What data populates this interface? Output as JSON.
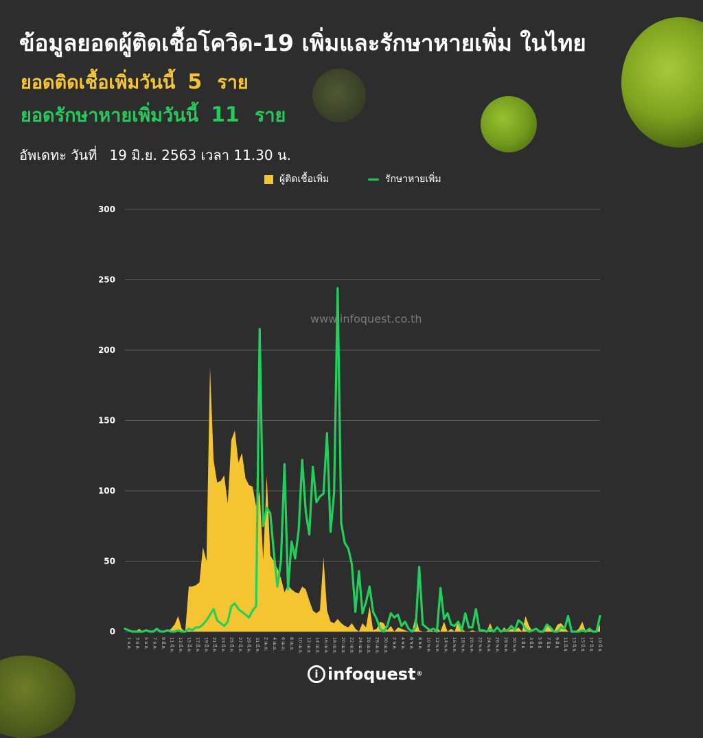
{
  "header": {
    "title": "ข้อมูลยอดผู้ติดเชื้อโควิด-19 เพิ่มและรักษาหายเพิ่ม ในไทย",
    "infected_label": "ยอดติดเชื้อเพิ่มวันนี้",
    "infected_value": "5",
    "infected_unit": "ราย",
    "recovered_label": "ยอดรักษาหายเพิ่มวันนี้",
    "recovered_value": "11",
    "recovered_unit": "ราย",
    "updated_label": "อัพเดทะ วันที่",
    "updated_date": "19 มิ.ย. 2563 เวลา 11.30 น."
  },
  "watermark": "www.infoquest.co.th",
  "brand": {
    "name": "infoquest",
    "mark": "®"
  },
  "colors": {
    "background": "#2d2d2d",
    "infected": "#f5c531",
    "recovered": "#1fd15c",
    "recovered_text": "#27c95c",
    "grid": "#5a5a5a"
  },
  "chart_data": {
    "type": "area",
    "ylim": [
      0,
      300
    ],
    "yticks": [
      0,
      50,
      100,
      150,
      200,
      250,
      300
    ],
    "grid": true,
    "legend_position": "top-center",
    "legend": [
      "ผู้ติดเชื้อเพิ่ม",
      "รักษาหายเพิ่ม"
    ],
    "x_tick_labels": [
      "1 ม.ค.",
      "3 ม.ค.",
      "5 ม.ค.",
      "7 ม.ค.",
      "9 มี.ค.",
      "11 มี.ค.",
      "13 มี.ค.",
      "15 มี.ค.",
      "17 มี.ค.",
      "19 มี.ค.",
      "21 มี.ค.",
      "23 มี.ค.",
      "25 มี.ค.",
      "27 มี.ค.",
      "29 มี.ค.",
      "31 มี.ค.",
      "2 เม.ย.",
      "4 เม.ย.",
      "6 เม.ย.",
      "8 เม.ย.",
      "10 เม.ย.",
      "12 เม.ย.",
      "14 เม.ย.",
      "16 เม.ย.",
      "18 เม.ย.",
      "20 เม.ย.",
      "22 เม.ย.",
      "24 เม.ย.",
      "26 เม.ย.",
      "28 เม.ย.",
      "30 เม.ย.",
      "2 พ.ค.",
      "4 พ.ค.",
      "6 พ.ค.",
      "8 พ.ค.",
      "10 พ.ค.",
      "12 พ.ค.",
      "14 พ.ค.",
      "16 พ.ค.",
      "18 พ.ค.",
      "20 พ.ค.",
      "22 พ.ค.",
      "24 พ.ค.",
      "26 พ.ค.",
      "28 พ.ค.",
      "30 พ.ค.",
      "1 มิ.ย.",
      "3 มิ.ย.",
      "5 มิ.ย.",
      "7 มิ.ย.",
      "9 มิ.ย.",
      "11 มิ.ย.",
      "13 มิ.ย.",
      "15 มิ.ย.",
      "17 มิ.ย.",
      "19 มิ.ย."
    ],
    "series": [
      {
        "name": "ผู้ติดเชื้อเพิ่ม",
        "type": "area",
        "values": [
          0,
          0,
          0,
          0,
          2,
          0,
          0,
          1,
          0,
          0,
          0,
          0,
          0,
          2,
          5,
          11,
          2,
          0,
          32,
          32,
          33,
          35,
          60,
          50,
          188,
          122,
          106,
          107,
          111,
          91,
          136,
          143,
          120,
          127,
          109,
          104,
          103,
          89,
          100,
          51,
          111,
          54,
          50,
          45,
          38,
          28,
          33,
          30,
          28,
          27,
          32,
          30,
          22,
          15,
          13,
          15,
          53,
          15,
          7,
          6,
          9,
          6,
          4,
          3,
          6,
          2,
          0,
          6,
          3,
          18,
          1,
          2,
          7,
          6,
          1,
          4,
          0,
          3,
          2,
          1,
          0,
          0,
          11,
          1,
          0,
          0,
          2,
          0,
          3,
          0,
          7,
          0,
          2,
          0,
          8,
          2,
          0,
          0,
          1,
          0,
          0,
          1,
          0,
          6,
          0,
          0,
          0,
          3,
          0,
          2,
          1,
          3,
          0,
          11,
          4,
          0,
          0,
          0,
          1,
          4,
          3,
          0,
          5,
          6,
          3,
          0,
          0,
          0,
          2,
          7,
          0,
          2,
          0,
          0,
          5
        ]
      },
      {
        "name": "รักษาหายเพิ่ม",
        "type": "line",
        "values": [
          2,
          1,
          0,
          0,
          0,
          0,
          1,
          0,
          0,
          2,
          0,
          0,
          1,
          0,
          0,
          1,
          0,
          0,
          2,
          1,
          3,
          3,
          5,
          8,
          12,
          16,
          8,
          6,
          4,
          7,
          18,
          20,
          16,
          14,
          12,
          10,
          15,
          18,
          215,
          75,
          88,
          84,
          56,
          32,
          50,
          119,
          30,
          64,
          52,
          72,
          122,
          85,
          69,
          117,
          92,
          96,
          98,
          141,
          71,
          99,
          244,
          77,
          63,
          59,
          48,
          14,
          43,
          13,
          21,
          32,
          14,
          9,
          2,
          0,
          4,
          13,
          10,
          12,
          4,
          7,
          2,
          0,
          3,
          46,
          5,
          3,
          1,
          2,
          0,
          31,
          9,
          13,
          5,
          4,
          7,
          1,
          13,
          3,
          3,
          16,
          1,
          1,
          0,
          2,
          0,
          3,
          0,
          1,
          1,
          4,
          1,
          8,
          6,
          2,
          0,
          1,
          2,
          0,
          0,
          5,
          3,
          0,
          0,
          3,
          2,
          11,
          0,
          0,
          0,
          1,
          0,
          2,
          0,
          0,
          11
        ]
      }
    ]
  }
}
